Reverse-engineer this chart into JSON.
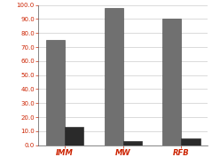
{
  "categories": [
    "IMM",
    "MW",
    "RFB"
  ],
  "series1": [
    75,
    98,
    90
  ],
  "series2": [
    13,
    3,
    5
  ],
  "bar_color1": "#707070",
  "bar_color2": "#2a2a2a",
  "ylim": [
    0,
    100
  ],
  "yticks": [
    0.0,
    10.0,
    20.0,
    30.0,
    40.0,
    50.0,
    60.0,
    70.0,
    80.0,
    90.0,
    100.0
  ],
  "bar_width": 0.32,
  "background_color": "#ffffff",
  "tick_color": "#cc2200",
  "label_color": "#cc2200",
  "grid_color": "#cccccc",
  "spine_color": "#555555"
}
